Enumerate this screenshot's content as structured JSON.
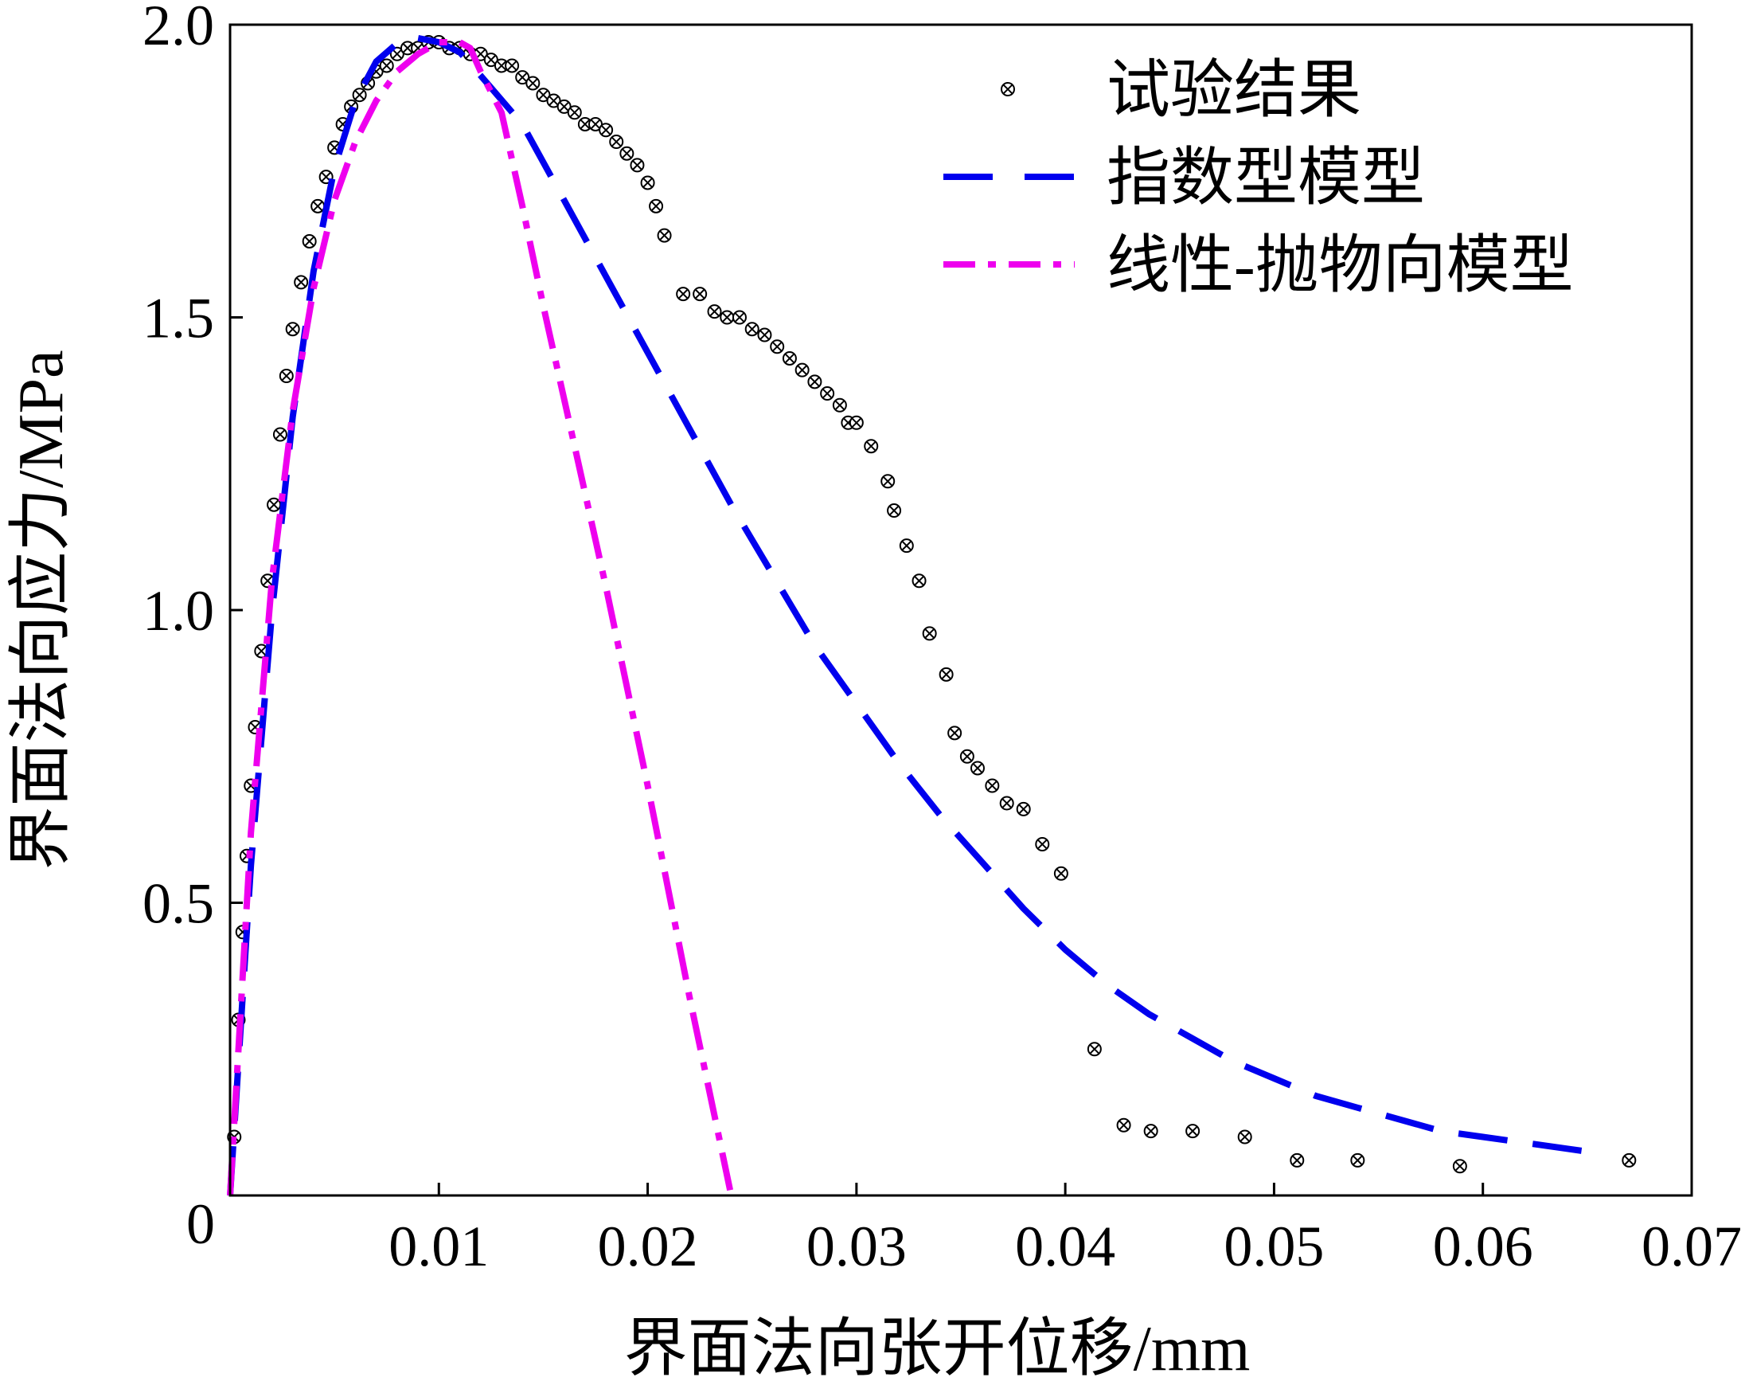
{
  "chart_data": {
    "type": "scatter",
    "title": "",
    "xlabel": "界面法向张开位移/mm",
    "ylabel": "界面法向应力/MPa",
    "xlim": [
      0,
      0.07
    ],
    "ylim": [
      0,
      2.0
    ],
    "x_ticks": [
      0.01,
      0.02,
      0.03,
      0.04,
      0.05,
      0.06,
      0.07
    ],
    "x_tick_labels": [
      "0.01",
      "0.02",
      "0.03",
      "0.04",
      "0.05",
      "0.06",
      "0.07"
    ],
    "y_ticks": [
      0,
      0.5,
      1.0,
      1.5,
      2.0
    ],
    "y_tick_labels": [
      "0",
      "0.5",
      "1.0",
      "1.5",
      "2.0"
    ],
    "grid": false,
    "legend_position": "top-right",
    "series": [
      {
        "name": "试验结果",
        "style": "circle-x-markers",
        "color": "#000000",
        "x": [
          0.0002,
          0.0004,
          0.0006,
          0.0008,
          0.001,
          0.0012,
          0.0015,
          0.0018,
          0.0021,
          0.0024,
          0.0027,
          0.003,
          0.0034,
          0.0038,
          0.0042,
          0.0046,
          0.005,
          0.0054,
          0.0058,
          0.0062,
          0.0066,
          0.007,
          0.0075,
          0.008,
          0.0085,
          0.009,
          0.0095,
          0.01,
          0.0105,
          0.011,
          0.0115,
          0.012,
          0.0125,
          0.013,
          0.0135,
          0.014,
          0.0145,
          0.015,
          0.0155,
          0.016,
          0.0165,
          0.017,
          0.0175,
          0.018,
          0.0185,
          0.019,
          0.0195,
          0.02,
          0.0204,
          0.0208,
          0.0217,
          0.0225,
          0.0232,
          0.0238,
          0.0244,
          0.025,
          0.0256,
          0.0262,
          0.0268,
          0.0274,
          0.028,
          0.0286,
          0.0292,
          0.0296,
          0.03,
          0.0307,
          0.0315,
          0.0318,
          0.0324,
          0.033,
          0.0335,
          0.0343,
          0.0347,
          0.0353,
          0.0358,
          0.0365,
          0.0372,
          0.038,
          0.0389,
          0.0398,
          0.0414,
          0.0428,
          0.0441,
          0.0461,
          0.0486,
          0.0511,
          0.054,
          0.0589,
          0.067
        ],
        "y": [
          0.1,
          0.3,
          0.45,
          0.58,
          0.7,
          0.8,
          0.93,
          1.05,
          1.18,
          1.3,
          1.4,
          1.48,
          1.56,
          1.63,
          1.69,
          1.74,
          1.79,
          1.83,
          1.86,
          1.88,
          1.9,
          1.92,
          1.93,
          1.95,
          1.96,
          1.96,
          1.97,
          1.97,
          1.96,
          1.96,
          1.95,
          1.95,
          1.94,
          1.93,
          1.93,
          1.91,
          1.9,
          1.88,
          1.87,
          1.86,
          1.85,
          1.83,
          1.83,
          1.82,
          1.8,
          1.78,
          1.76,
          1.73,
          1.69,
          1.64,
          1.54,
          1.54,
          1.51,
          1.5,
          1.5,
          1.48,
          1.47,
          1.45,
          1.43,
          1.41,
          1.39,
          1.37,
          1.35,
          1.32,
          1.32,
          1.28,
          1.22,
          1.17,
          1.11,
          1.05,
          0.96,
          0.89,
          0.79,
          0.75,
          0.73,
          0.7,
          0.67,
          0.66,
          0.6,
          0.55,
          0.25,
          0.12,
          0.11,
          0.11,
          0.1,
          0.06,
          0.06,
          0.05,
          0.06
        ]
      },
      {
        "name": "指数型模型",
        "style": "dashed",
        "color": "#0000ee",
        "x": [
          0.0,
          0.001,
          0.002,
          0.003,
          0.004,
          0.005,
          0.006,
          0.007,
          0.008,
          0.009,
          0.01,
          0.011,
          0.012,
          0.014,
          0.016,
          0.018,
          0.02,
          0.022,
          0.024,
          0.026,
          0.028,
          0.03,
          0.032,
          0.034,
          0.036,
          0.038,
          0.04,
          0.042,
          0.044,
          0.046,
          0.048,
          0.05,
          0.052,
          0.054,
          0.056,
          0.058,
          0.06,
          0.062,
          0.064,
          0.065
        ],
        "y": [
          0.0,
          0.564,
          0.995,
          1.33,
          1.579,
          1.755,
          1.87,
          1.937,
          1.968,
          1.977,
          1.97,
          1.953,
          1.913,
          1.83,
          1.7,
          1.57,
          1.44,
          1.31,
          1.18,
          1.06,
          0.94,
          0.84,
          0.74,
          0.65,
          0.57,
          0.49,
          0.42,
          0.36,
          0.31,
          0.27,
          0.23,
          0.2,
          0.17,
          0.15,
          0.13,
          0.11,
          0.1,
          0.09,
          0.08,
          0.075
        ]
      },
      {
        "name": "线性-抛物向模型",
        "style": "dash-dot",
        "color": "#ee00ee",
        "x": [
          0.0,
          0.001,
          0.002,
          0.003,
          0.004,
          0.005,
          0.006,
          0.007,
          0.008,
          0.009,
          0.01,
          0.011,
          0.0115,
          0.012,
          0.013,
          0.014,
          0.015,
          0.016,
          0.017,
          0.018,
          0.019,
          0.02,
          0.021,
          0.022,
          0.023,
          0.024
        ],
        "y": [
          0.0,
          0.62,
          1.05,
          1.34,
          1.55,
          1.7,
          1.8,
          1.87,
          1.92,
          1.95,
          1.97,
          1.97,
          1.96,
          1.92,
          1.85,
          1.69,
          1.52,
          1.36,
          1.2,
          1.04,
          0.87,
          0.7,
          0.52,
          0.34,
          0.17,
          0.0
        ]
      }
    ]
  }
}
